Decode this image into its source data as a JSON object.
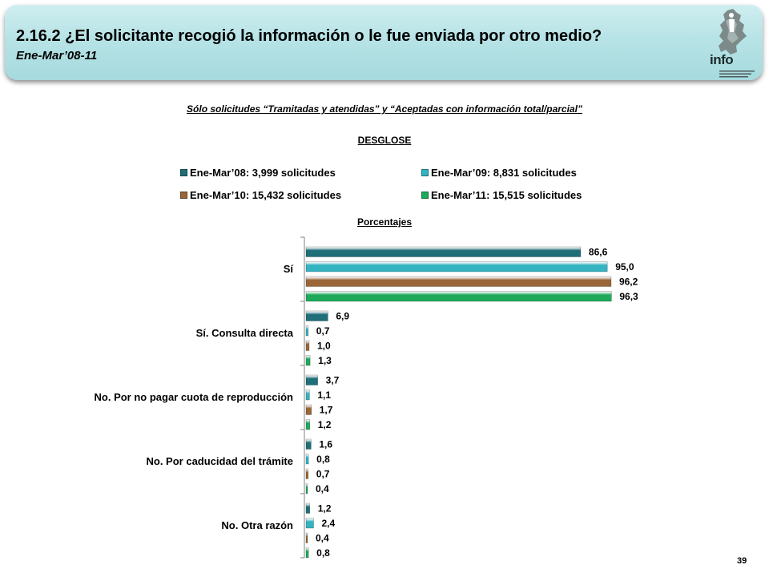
{
  "header": {
    "title": "2.16.2 ¿El solicitante recogió la información o le fue enviada por otro medio?",
    "subtitle": "Ene-Mar’08-11"
  },
  "logo": {
    "text": "info",
    "icon": "mexico-city-map-logo"
  },
  "note": "Sólo solicitudes “Tramitadas y atendidas” y “Aceptadas con información total/parcial”",
  "page_number": "39",
  "colors": {
    "header_bg": "#b7e3e6",
    "accent_dark_teal": "#1f6e78"
  },
  "chart_data": {
    "type": "bar",
    "orientation": "horizontal",
    "title": "DESGLOSE",
    "xlabel": "Porcentajes",
    "xlim": [
      0,
      100
    ],
    "legend_placement": "top",
    "categories": [
      "Sí",
      "Sí. Consulta directa",
      "No. Por no pagar cuota de reproducción",
      "No. Por caducidad del trámite",
      "No. Otra razón"
    ],
    "series": [
      {
        "name": "Ene-Mar’08: 3,999 solicitudes",
        "color": "#1f6e78",
        "values": [
          86.6,
          6.9,
          3.7,
          1.6,
          1.2
        ],
        "labels": [
          "86,6",
          "6,9",
          "3,7",
          "1,6",
          "1,2"
        ]
      },
      {
        "name": "Ene-Mar’09: 8,831 solicitudes",
        "color": "#34b3c0",
        "values": [
          95.0,
          0.7,
          1.1,
          0.8,
          2.4
        ],
        "labels": [
          "95,0",
          "0,7",
          "1,1",
          "0,8",
          "2,4"
        ]
      },
      {
        "name": "Ene-Mar’10: 15,432 solicitudes",
        "color": "#9a6638",
        "values": [
          96.2,
          1.0,
          1.7,
          0.7,
          0.4
        ],
        "labels": [
          "96,2",
          "1,0",
          "1,7",
          "0,7",
          "0,4"
        ]
      },
      {
        "name": "Ene-Mar’11: 15,515 solicitudes",
        "color": "#1eaa5a",
        "values": [
          96.3,
          1.3,
          1.2,
          0.4,
          0.8
        ],
        "labels": [
          "96,3",
          "1,3",
          "1,2",
          "0,4",
          "0,8"
        ]
      }
    ]
  }
}
